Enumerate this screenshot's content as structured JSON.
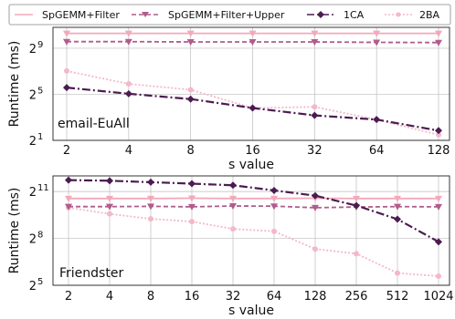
{
  "legend": {
    "items": [
      {
        "label": "SpGEMM+Filter",
        "color": "#f2a9bc",
        "dash": "solid",
        "marker": "v"
      },
      {
        "label": "SpGEMM+Filter+Upper",
        "color": "#b15c8c",
        "dash": "dashed",
        "marker": "v"
      },
      {
        "label": "1CA",
        "color": "#4b1c50",
        "dash": "dashdot",
        "marker": "D"
      },
      {
        "label": "2BA",
        "color": "#f4b8c8",
        "dash": "dotted",
        "marker": "o"
      }
    ]
  },
  "chart_data": [
    {
      "type": "line",
      "annotation": "email-EuAll",
      "xlabel": "s value",
      "ylabel": "Runtime (ms)",
      "yscale": "log2",
      "ylim": [
        2,
        1800
      ],
      "grid": true,
      "categories": [
        "2",
        "4",
        "8",
        "16",
        "32",
        "64",
        "128"
      ],
      "yticks": [
        {
          "label": "2",
          "exp": "1",
          "value": 2
        },
        {
          "label": "2",
          "exp": "5",
          "value": 32
        },
        {
          "label": "2",
          "exp": "9",
          "value": 512
        }
      ],
      "series": [
        {
          "name": "SpGEMM+Filter",
          "values": [
            1250,
            1250,
            1250,
            1250,
            1250,
            1250,
            1250
          ]
        },
        {
          "name": "SpGEMM+Filter+Upper",
          "values": [
            760,
            760,
            750,
            750,
            750,
            730,
            720
          ]
        },
        {
          "name": "1CA",
          "values": [
            48,
            33,
            24,
            14,
            9,
            7,
            3.6
          ]
        },
        {
          "name": "2BA",
          "values": [
            130,
            60,
            42,
            14,
            15,
            7,
            2.8
          ]
        }
      ]
    },
    {
      "type": "line",
      "annotation": "Friendster",
      "xlabel": "s value",
      "ylabel": "Runtime (ms)",
      "yscale": "log2",
      "ylim": [
        32,
        4096
      ],
      "grid": true,
      "categories": [
        "2",
        "4",
        "8",
        "16",
        "32",
        "64",
        "128",
        "256",
        "512",
        "1024"
      ],
      "yticks": [
        {
          "label": "2",
          "exp": "5",
          "value": 32
        },
        {
          "label": "2",
          "exp": "8",
          "value": 256
        },
        {
          "label": "2",
          "exp": "11",
          "value": 2048
        }
      ],
      "series": [
        {
          "name": "SpGEMM+Filter",
          "values": [
            1500,
            1500,
            1500,
            1520,
            1500,
            1500,
            1520,
            1500,
            1500,
            1500
          ]
        },
        {
          "name": "SpGEMM+Filter+Upper",
          "values": [
            1050,
            1050,
            1060,
            1040,
            1080,
            1070,
            1000,
            1030,
            1050,
            1040
          ]
        },
        {
          "name": "1CA",
          "values": [
            3400,
            3300,
            3100,
            2900,
            2700,
            2150,
            1700,
            1100,
            600,
            220
          ]
        },
        {
          "name": "2BA",
          "values": [
            1000,
            760,
            610,
            540,
            390,
            350,
            160,
            130,
            55,
            48
          ]
        }
      ]
    }
  ]
}
